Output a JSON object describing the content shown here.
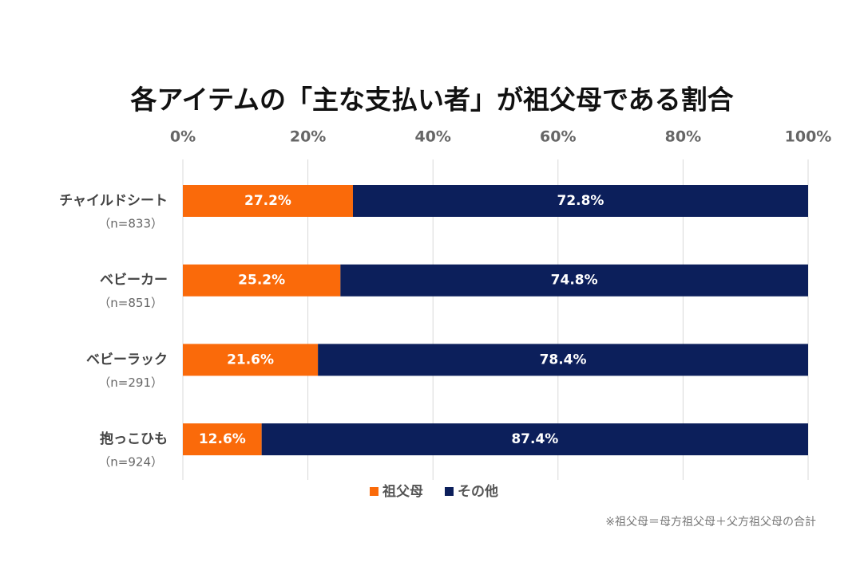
{
  "chart_data": {
    "type": "stacked_barh",
    "title": "各アイテムの「主な支払い者」が祖父母である割合",
    "categories": [
      "チャイルドシート",
      "ベビーカー",
      "ベビーラック",
      "抱っこひも"
    ],
    "category_notes": [
      "（n=833）",
      "（n=851）",
      "（n=291）",
      "（n=924）"
    ],
    "series": [
      {
        "name": "祖父母",
        "color": "#fa6a0a",
        "values": [
          27.2,
          25.2,
          21.6,
          12.6
        ],
        "value_labels": [
          "27.2%",
          "25.2%",
          "21.6%",
          "12.6%"
        ]
      },
      {
        "name": "その他",
        "color": "#0c1f5b",
        "values": [
          72.8,
          74.8,
          78.4,
          87.4
        ],
        "value_labels": [
          "72.8%",
          "74.8%",
          "78.4%",
          "87.4%"
        ]
      }
    ],
    "xlim": [
      0,
      100
    ],
    "xticks": [
      {
        "value": 0,
        "label": "0%"
      },
      {
        "value": 20,
        "label": "20%"
      },
      {
        "value": 40,
        "label": "40%"
      },
      {
        "value": 60,
        "label": "60%"
      },
      {
        "value": 80,
        "label": "80%"
      },
      {
        "value": 100,
        "label": "100%"
      }
    ],
    "grid": true,
    "legend": "bottom",
    "footnote": "※祖父母＝母方祖父母＋父方祖父母の合計"
  }
}
